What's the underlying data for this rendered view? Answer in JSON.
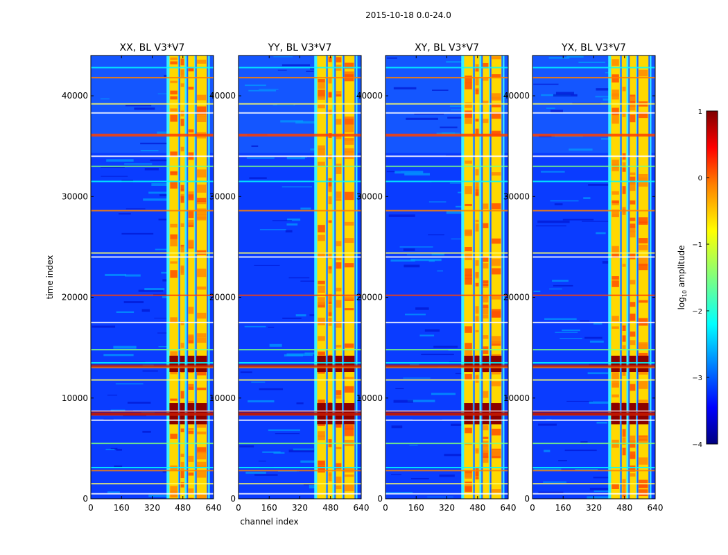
{
  "chart_data": [
    {
      "type": "heatmap",
      "suptitle": "2015-10-18 0.0-24.0",
      "title": "XX, BL V3*V7",
      "xlabel": "",
      "ylabel": "time index",
      "xlim": [
        0,
        640
      ],
      "ylim": [
        0,
        44000
      ],
      "xticks": [
        "0",
        "160",
        "320",
        "480",
        "640"
      ],
      "yticks": [
        "0",
        "10000",
        "20000",
        "30000",
        "40000"
      ],
      "band_channels": [
        [
          410,
          455
        ],
        [
          465,
          490
        ],
        [
          505,
          540
        ],
        [
          550,
          605
        ]
      ],
      "hot_time_ranges": [
        [
          7400,
          9500
        ],
        [
          12600,
          14200
        ]
      ]
    },
    {
      "type": "heatmap",
      "title": "YY, BL V3*V7",
      "xlabel": "channel index",
      "xlim": [
        0,
        640
      ],
      "ylim": [
        0,
        44000
      ],
      "xticks": [
        "0",
        "160",
        "320",
        "480",
        "640"
      ],
      "yticks": [
        "0",
        "10000",
        "20000",
        "30000",
        "40000"
      ]
    },
    {
      "type": "heatmap",
      "title": "XY, BL V3*V7",
      "xlabel": "",
      "xlim": [
        0,
        640
      ],
      "ylim": [
        0,
        44000
      ],
      "xticks": [
        "0",
        "160",
        "320",
        "480",
        "640"
      ],
      "yticks": [
        "0",
        "10000",
        "20000",
        "30000",
        "40000"
      ]
    },
    {
      "type": "heatmap",
      "title": "YX, BL V3*V7",
      "xlabel": "",
      "xlim": [
        0,
        640
      ],
      "ylim": [
        0,
        44000
      ],
      "xticks": [
        "0",
        "160",
        "320",
        "480",
        "640"
      ],
      "yticks": [
        "0",
        "10000",
        "20000",
        "30000",
        "40000"
      ]
    }
  ],
  "colorbar": {
    "label": "log10 amplitude",
    "label_main": "log",
    "label_sub": "10",
    "label_rest": " amplitude",
    "range": [
      -4,
      1
    ],
    "ticks": [
      "1",
      "0",
      "−1",
      "−2",
      "−3",
      "−4"
    ],
    "colormap": "jet"
  },
  "colors": {
    "jet_stops": [
      "#00007f",
      "#0000ff",
      "#007fff",
      "#00ffff",
      "#7fff7f",
      "#ffff00",
      "#ff7f00",
      "#ff0000",
      "#7f0000"
    ]
  }
}
